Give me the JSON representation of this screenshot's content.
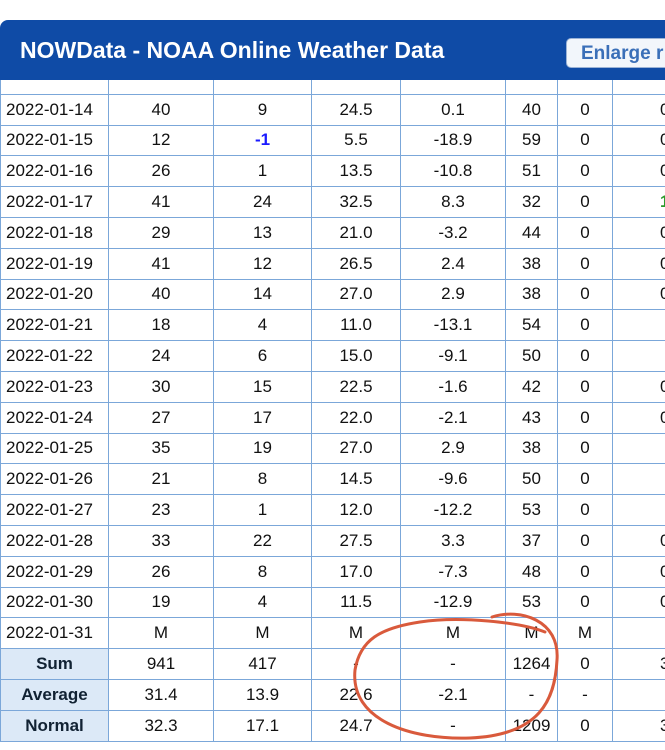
{
  "header": {
    "title": "NOWData - NOAA Online Weather Data",
    "button": "Enlarge r"
  },
  "table": {
    "rows": [
      [
        "2022-01-14",
        "40",
        "9",
        "24.5",
        "0.1",
        "40",
        "0",
        "0"
      ],
      [
        "2022-01-15",
        "12",
        {
          "text": "-1",
          "color": "#1a1aff"
        },
        "5.5",
        "-18.9",
        "59",
        "0",
        "0"
      ],
      [
        "2022-01-16",
        "26",
        "1",
        "13.5",
        "-10.8",
        "51",
        "0",
        "0"
      ],
      [
        "2022-01-17",
        "41",
        "24",
        "32.5",
        "8.3",
        "32",
        "0",
        {
          "text": "1",
          "color": "#2a9a2a"
        }
      ],
      [
        "2022-01-18",
        "29",
        "13",
        "21.0",
        "-3.2",
        "44",
        "0",
        "0"
      ],
      [
        "2022-01-19",
        "41",
        "12",
        "26.5",
        "2.4",
        "38",
        "0",
        "0"
      ],
      [
        "2022-01-20",
        "40",
        "14",
        "27.0",
        "2.9",
        "38",
        "0",
        "0"
      ],
      [
        "2022-01-21",
        "18",
        "4",
        "11.0",
        "-13.1",
        "54",
        "0"
      ],
      [
        "2022-01-22",
        "24",
        "6",
        "15.0",
        "-9.1",
        "50",
        "0"
      ],
      [
        "2022-01-23",
        "30",
        "15",
        "22.5",
        "-1.6",
        "42",
        "0",
        "0"
      ],
      [
        "2022-01-24",
        "27",
        "17",
        "22.0",
        "-2.1",
        "43",
        "0",
        "0"
      ],
      [
        "2022-01-25",
        "35",
        "19",
        "27.0",
        "2.9",
        "38",
        "0"
      ],
      [
        "2022-01-26",
        "21",
        "8",
        "14.5",
        "-9.6",
        "50",
        "0"
      ],
      [
        "2022-01-27",
        "23",
        "1",
        "12.0",
        "-12.2",
        "53",
        "0"
      ],
      [
        "2022-01-28",
        "33",
        "22",
        "27.5",
        "3.3",
        "37",
        "0",
        "0"
      ],
      [
        "2022-01-29",
        "26",
        "8",
        "17.0",
        "-7.3",
        "48",
        "0",
        "0"
      ],
      [
        "2022-01-30",
        "19",
        "4",
        "11.5",
        "-12.9",
        "53",
        "0",
        "0"
      ],
      [
        "2022-01-31",
        "M",
        "M",
        "M",
        "M",
        "M",
        "M"
      ]
    ],
    "summary": [
      [
        "Sum",
        "941",
        "417",
        "-",
        "-",
        "1264",
        "0",
        "3"
      ],
      [
        "Average",
        "31.4",
        "13.9",
        "22.6",
        "-2.1",
        "-",
        "-"
      ],
      [
        "Normal",
        "32.3",
        "17.1",
        "24.7",
        "-",
        "1209",
        "0",
        "3"
      ]
    ]
  }
}
